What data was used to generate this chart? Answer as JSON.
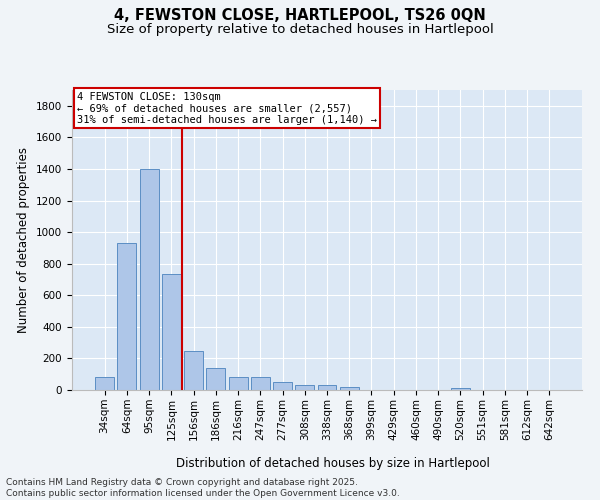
{
  "title_line1": "4, FEWSTON CLOSE, HARTLEPOOL, TS26 0QN",
  "title_line2": "Size of property relative to detached houses in Hartlepool",
  "xlabel": "Distribution of detached houses by size in Hartlepool",
  "ylabel": "Number of detached properties",
  "categories": [
    "34sqm",
    "64sqm",
    "95sqm",
    "125sqm",
    "156sqm",
    "186sqm",
    "216sqm",
    "247sqm",
    "277sqm",
    "308sqm",
    "338sqm",
    "368sqm",
    "399sqm",
    "429sqm",
    "460sqm",
    "490sqm",
    "520sqm",
    "551sqm",
    "581sqm",
    "612sqm",
    "642sqm"
  ],
  "values": [
    80,
    930,
    1400,
    735,
    250,
    140,
    85,
    80,
    50,
    30,
    30,
    18,
    0,
    0,
    0,
    0,
    10,
    0,
    0,
    0,
    0
  ],
  "bar_color": "#aec6e8",
  "bar_edge_color": "#5b8ec4",
  "vline_color": "#cc0000",
  "vline_pos": 3.5,
  "annotation_text": "4 FEWSTON CLOSE: 130sqm\n← 69% of detached houses are smaller (2,557)\n31% of semi-detached houses are larger (1,140) →",
  "annotation_box_color": "#cc0000",
  "ylim": [
    0,
    1900
  ],
  "yticks": [
    0,
    200,
    400,
    600,
    800,
    1000,
    1200,
    1400,
    1600,
    1800
  ],
  "plot_bg_color": "#dce8f5",
  "fig_bg_color": "#f0f4f8",
  "grid_color": "#ffffff",
  "footer_line1": "Contains HM Land Registry data © Crown copyright and database right 2025.",
  "footer_line2": "Contains public sector information licensed under the Open Government Licence v3.0.",
  "title_fontsize": 10.5,
  "subtitle_fontsize": 9.5,
  "axis_label_fontsize": 8.5,
  "tick_fontsize": 7.5,
  "annotation_fontsize": 7.5,
  "footer_fontsize": 6.5
}
